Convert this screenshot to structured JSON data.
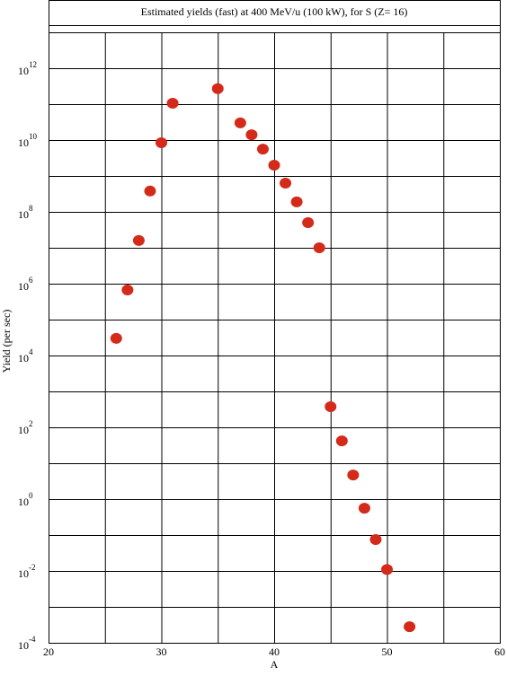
{
  "chart_data": {
    "type": "scatter",
    "title": "Estimated yields (fast) at 400 MeV/u (100 kW), for S (Z= 16)",
    "xlabel": "A",
    "ylabel": "Yield (per sec)",
    "x": [
      26,
      27,
      28,
      29,
      30,
      31,
      35,
      37,
      38,
      39,
      40,
      41,
      42,
      43,
      44,
      45,
      46,
      47,
      48,
      49,
      50,
      52
    ],
    "values": [
      30000,
      670000,
      16000000,
      380000000,
      8400000000,
      106000000000,
      270000000000,
      30000000000,
      14000000000,
      5600000000,
      2000000000,
      630000000,
      190000000,
      50000000,
      10000000,
      376,
      42,
      4.7,
      0.56,
      0.075,
      0.011,
      0.00028
    ],
    "color": "#d42a1a",
    "xlim": [
      20,
      60
    ],
    "xticks": [
      20,
      30,
      40,
      50,
      60
    ],
    "x_grid": [
      25,
      35,
      45,
      55
    ],
    "ylim": [
      0.0001,
      10000000000000
    ],
    "log_y": true,
    "yticks": [
      {
        "value": 0.0001,
        "label": "10",
        "sup": "-4"
      },
      {
        "value": 0.01,
        "label": "10",
        "sup": "-2"
      },
      {
        "value": 1,
        "label": "10",
        "sup": "0"
      },
      {
        "value": 100,
        "label": "10",
        "sup": "2"
      },
      {
        "value": 10000,
        "label": "10",
        "sup": "4"
      },
      {
        "value": 1000000,
        "label": "10",
        "sup": "6"
      },
      {
        "value": 100000000,
        "label": "10",
        "sup": "8"
      },
      {
        "value": 10000000000,
        "label": "10",
        "sup": "10"
      },
      {
        "value": 1000000000000,
        "label": "10",
        "sup": "12"
      }
    ],
    "y_grid": [
      0.001,
      0.1,
      10,
      1000,
      100000,
      10000000,
      1000000000,
      100000000000
    ],
    "grid": true
  }
}
